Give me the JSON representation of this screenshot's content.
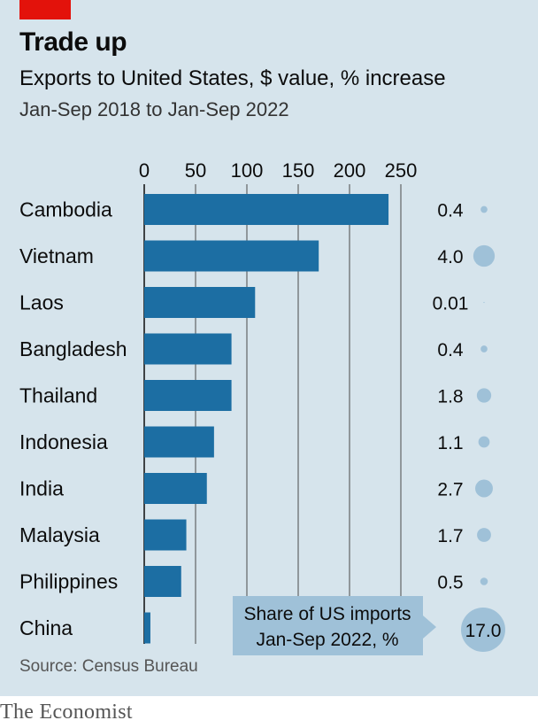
{
  "header": {
    "title": "Trade up",
    "subtitle": "Exports to United States, $ value, % increase",
    "period": "Jan-Sep 2018 to Jan-Sep 2022"
  },
  "chart_data": {
    "type": "bar",
    "orientation": "horizontal",
    "categories": [
      "Cambodia",
      "Vietnam",
      "Laos",
      "Bangladesh",
      "Thailand",
      "Indonesia",
      "India",
      "Malaysia",
      "Philippines",
      "China"
    ],
    "values": [
      238,
      170,
      108,
      85,
      85,
      68,
      61,
      41,
      36,
      6
    ],
    "xlim": [
      0,
      250
    ],
    "xticks": [
      0,
      50,
      100,
      150,
      200,
      250
    ],
    "grid": true,
    "bar_color": "#1c6ea3",
    "share": {
      "label_line1": "Share of US imports",
      "label_line2": "Jan-Sep 2022, %",
      "labels": [
        "0.4",
        "4.0",
        "0.01",
        "0.4",
        "1.8",
        "1.1",
        "2.7",
        "1.7",
        "0.5",
        "17.0"
      ],
      "values": [
        0.4,
        4.0,
        0.01,
        0.4,
        1.8,
        1.1,
        2.7,
        1.7,
        0.5,
        17.0
      ],
      "bubble_color": "#9fc1d8"
    }
  },
  "source": "Source: Census Bureau",
  "footer": "The Economist"
}
